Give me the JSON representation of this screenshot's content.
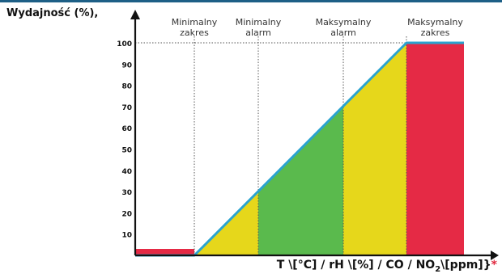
{
  "header": {
    "y_axis_label": "Wydajność (%),",
    "x_axis_label_main": "T \\[°C] / rH \\[%] / CO / NO",
    "x_axis_label_sub": "2",
    "x_axis_label_tail": "\\[ppm]}",
    "x_axis_label_star": "*"
  },
  "chart_data": {
    "type": "area",
    "y_ticks": [
      "10",
      "20",
      "30",
      "40",
      "50",
      "60",
      "70",
      "80",
      "90",
      "100"
    ],
    "ylim": [
      0,
      100
    ],
    "zones": [
      {
        "label_line1": "Minimalny",
        "label_line2": "zakres"
      },
      {
        "label_line1": "Minimalny",
        "label_line2": "alarm"
      },
      {
        "label_line1": "Maksymalny",
        "label_line2": "alarm"
      },
      {
        "label_line1": "Maksymalny",
        "label_line2": "zakres"
      }
    ],
    "colors": {
      "axis": "#111111",
      "line": "#2aa3cf",
      "yellow": "#e6d71b",
      "green": "#5aba4d",
      "red": "#e52a45",
      "dotted": "#555555",
      "topbar": "#1d5f86"
    }
  }
}
